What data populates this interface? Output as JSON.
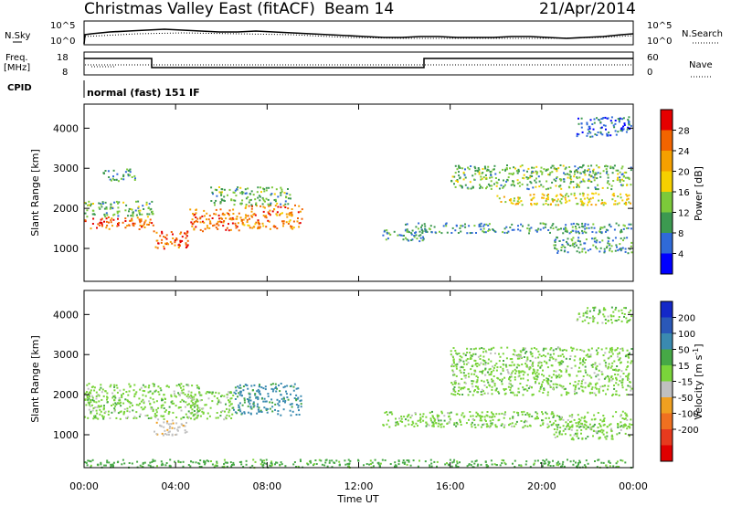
{
  "header": {
    "station": "Christmas Valley East (fitACF)",
    "beam": "Beam 14",
    "date": "21/Apr/2014"
  },
  "noise_panel": {
    "left_label": "N.Sky",
    "right_label": "N.Search",
    "ticks": [
      "10^5",
      "10^0"
    ],
    "ticks_right": [
      "10^5",
      "10^0"
    ]
  },
  "freq_panel": {
    "left_label_1": "Freq.",
    "left_label_2": "[MHz]",
    "right_label": "Nave",
    "left_ticks": [
      "18",
      "8"
    ],
    "right_ticks": [
      "60",
      "0"
    ]
  },
  "cpid": {
    "label": "CPID",
    "mode": "normal (fast) 151 IF"
  },
  "power_colorbar": {
    "label": "Power [dB]",
    "ticks": [
      "28",
      "24",
      "20",
      "16",
      "12",
      "8",
      "4"
    ],
    "colors": [
      "#0000ff",
      "#2f6ad8",
      "#3c9950",
      "#7cc93a",
      "#f5d000",
      "#f5a000",
      "#f26400",
      "#e60000"
    ]
  },
  "velocity_colorbar": {
    "label": "Velocity [m s",
    "label_sup": "-1",
    "label_end": "]",
    "ticks": [
      "200",
      "100",
      "50",
      "15",
      "-15",
      "-50",
      "-100",
      "-200"
    ],
    "colors": [
      "#1428c8",
      "#2a58b8",
      "#3a8ab0",
      "#46a846",
      "#7ad43a",
      "#c0c0c0",
      "#f0a020",
      "#f07020",
      "#e63a1e",
      "#e00000"
    ]
  },
  "axes": {
    "ylabel": "Slant Range [km]",
    "yticks": [
      1000,
      2000,
      3000,
      4000
    ],
    "xticks": [
      "00:00",
      "04:00",
      "08:00",
      "12:00",
      "16:00",
      "20:00",
      "00:00"
    ],
    "xlabel": "Time UT"
  },
  "chart_data": {
    "type": "heatmap",
    "title": "Christmas Valley East (fitACF) Beam 14 21/Apr/2014",
    "xlabel": "Time UT",
    "ylabel": "Slant Range [km]",
    "xlim": [
      0,
      24
    ],
    "ylim": [
      180,
      4600
    ],
    "panels": [
      {
        "name": "Power [dB]",
        "clim": [
          0,
          32
        ],
        "scatter_bands": [
          {
            "t0": 0.0,
            "t1": 3.0,
            "r0": 1500,
            "r1": 1800,
            "value": 26
          },
          {
            "t0": 0.0,
            "t1": 3.0,
            "r0": 1800,
            "r1": 2200,
            "value": 12
          },
          {
            "t0": 0.8,
            "t1": 2.2,
            "r0": 2700,
            "r1": 3000,
            "value": 10
          },
          {
            "t0": 3.0,
            "t1": 4.6,
            "r0": 1000,
            "r1": 1450,
            "value": 27
          },
          {
            "t0": 4.6,
            "t1": 6.8,
            "r0": 1450,
            "r1": 2000,
            "value": 25
          },
          {
            "t0": 6.8,
            "t1": 9.5,
            "r0": 1500,
            "r1": 2100,
            "value": 24
          },
          {
            "t0": 5.5,
            "t1": 9.0,
            "r0": 2100,
            "r1": 2550,
            "value": 12
          },
          {
            "t0": 13.0,
            "t1": 15.0,
            "r0": 1200,
            "r1": 1500,
            "value": 9
          },
          {
            "t0": 14.0,
            "t1": 23.9,
            "r0": 1400,
            "r1": 1650,
            "value": 9
          },
          {
            "t0": 18.0,
            "t1": 23.9,
            "r0": 2100,
            "r1": 2400,
            "value": 18
          },
          {
            "t0": 16.0,
            "t1": 23.9,
            "r0": 2500,
            "r1": 3100,
            "value": 12
          },
          {
            "t0": 20.5,
            "t1": 23.9,
            "r0": 900,
            "r1": 1300,
            "value": 10
          },
          {
            "t0": 21.5,
            "t1": 23.9,
            "r0": 3800,
            "r1": 4300,
            "value": 6
          }
        ]
      },
      {
        "name": "Velocity [m s-1]",
        "clim": [
          -200,
          200
        ],
        "scatter_bands": [
          {
            "t0": 0.0,
            "t1": 5.0,
            "r0": 1400,
            "r1": 2300,
            "value": 0
          },
          {
            "t0": 3.0,
            "t1": 4.5,
            "r0": 1000,
            "r1": 1400,
            "value": -40
          },
          {
            "t0": 4.5,
            "t1": 6.5,
            "r0": 1400,
            "r1": 2100,
            "value": 0
          },
          {
            "t0": 6.5,
            "t1": 9.5,
            "r0": 1500,
            "r1": 2300,
            "value": 60
          },
          {
            "t0": 13.0,
            "t1": 23.9,
            "r0": 1200,
            "r1": 1600,
            "value": 0
          },
          {
            "t0": 16.0,
            "t1": 23.9,
            "r0": 2000,
            "r1": 3200,
            "value": 0
          },
          {
            "t0": 20.5,
            "t1": 23.9,
            "r0": 900,
            "r1": 1300,
            "value": 0
          },
          {
            "t0": 21.5,
            "t1": 23.9,
            "r0": 3800,
            "r1": 4200,
            "value": 0
          },
          {
            "t0": 0.0,
            "t1": 23.9,
            "r0": 200,
            "r1": 400,
            "value": 30
          }
        ]
      }
    ]
  }
}
